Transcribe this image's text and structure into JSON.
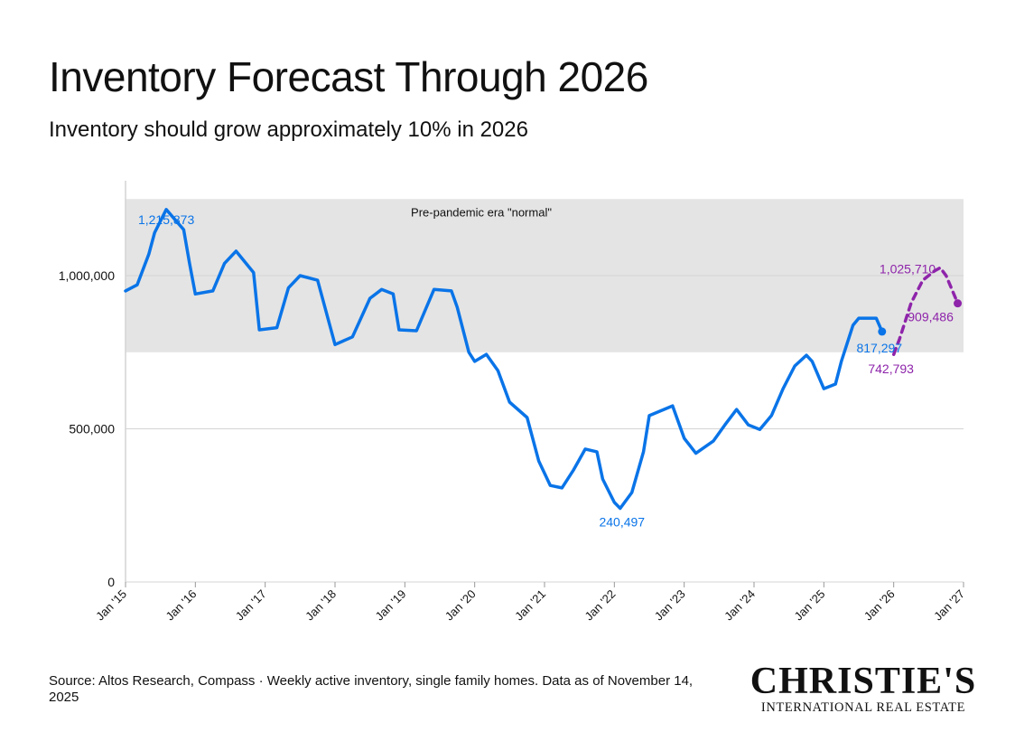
{
  "title": "Inventory Forecast Through 2026",
  "subtitle": "Inventory should grow approximately 10% in 2026",
  "source": "Source: Altos Research, Compass · Weekly active inventory, single family homes. Data as of November 14, 2025",
  "logo": {
    "name": "CHRISTIE'S",
    "tagline": "INTERNATIONAL REAL ESTATE"
  },
  "chart_data": {
    "type": "line",
    "title": "Inventory Forecast Through 2026",
    "xlabel": "",
    "ylabel": "",
    "ylim": [
      0,
      1300000
    ],
    "xlim": [
      "2015-01",
      "2027-01"
    ],
    "y_ticks": [
      {
        "value": 0,
        "label": "0"
      },
      {
        "value": 500000,
        "label": "500,000"
      },
      {
        "value": 1000000,
        "label": "1,000,000"
      }
    ],
    "x_ticks": [
      {
        "date": "2015-01",
        "label": "Jan '15"
      },
      {
        "date": "2016-01",
        "label": "Jan '16"
      },
      {
        "date": "2017-01",
        "label": "Jan '17"
      },
      {
        "date": "2018-01",
        "label": "Jan '18"
      },
      {
        "date": "2019-01",
        "label": "Jan '19"
      },
      {
        "date": "2020-01",
        "label": "Jan '20"
      },
      {
        "date": "2021-01",
        "label": "Jan '21"
      },
      {
        "date": "2022-01",
        "label": "Jan '22"
      },
      {
        "date": "2023-01",
        "label": "Jan '23"
      },
      {
        "date": "2024-01",
        "label": "Jan '24"
      },
      {
        "date": "2025-01",
        "label": "Jan '25"
      },
      {
        "date": "2026-01",
        "label": "Jan '26"
      },
      {
        "date": "2027-01",
        "label": "Jan '27"
      }
    ],
    "grid": true,
    "band": {
      "label": "Pre-pandemic era \"normal\"",
      "from": 750000,
      "to": 1250000,
      "color": "#e4e4e4"
    },
    "series": [
      {
        "style": "solid",
        "color": "#0a74e8",
        "points": [
          [
            "2015-01",
            950000
          ],
          [
            "2015-03",
            970000
          ],
          [
            "2015-05",
            1070000
          ],
          [
            "2015-06",
            1140000
          ],
          [
            "2015-08",
            1215873
          ],
          [
            "2015-11",
            1150000
          ],
          [
            "2015-12",
            1040000
          ],
          [
            "2016-01",
            940000
          ],
          [
            "2016-04",
            950000
          ],
          [
            "2016-06",
            1040000
          ],
          [
            "2016-08",
            1080000
          ],
          [
            "2016-11",
            1010000
          ],
          [
            "2016-12",
            823000
          ],
          [
            "2017-03",
            830000
          ],
          [
            "2017-05",
            960000
          ],
          [
            "2017-07",
            1000000
          ],
          [
            "2017-10",
            985000
          ],
          [
            "2018-01",
            775000
          ],
          [
            "2018-04",
            800000
          ],
          [
            "2018-07",
            926000
          ],
          [
            "2018-09",
            955000
          ],
          [
            "2018-11",
            940000
          ],
          [
            "2018-12",
            823000
          ],
          [
            "2019-03",
            820000
          ],
          [
            "2019-06",
            955000
          ],
          [
            "2019-09",
            950000
          ],
          [
            "2019-10",
            897000
          ],
          [
            "2019-12",
            750000
          ],
          [
            "2020-01",
            720000
          ],
          [
            "2020-03",
            743000
          ],
          [
            "2020-05",
            690000
          ],
          [
            "2020-07",
            587000
          ],
          [
            "2020-10",
            537000
          ],
          [
            "2020-12",
            395000
          ],
          [
            "2021-02",
            315000
          ],
          [
            "2021-04",
            307000
          ],
          [
            "2021-06",
            366000
          ],
          [
            "2021-08",
            434000
          ],
          [
            "2021-10",
            425000
          ],
          [
            "2021-11",
            336000
          ],
          [
            "2022-01",
            260000
          ],
          [
            "2022-02",
            240497
          ],
          [
            "2022-04",
            292000
          ],
          [
            "2022-06",
            425000
          ],
          [
            "2022-07",
            543000
          ],
          [
            "2022-11",
            575000
          ],
          [
            "2023-01",
            469000
          ],
          [
            "2023-03",
            420000
          ],
          [
            "2023-06",
            460000
          ],
          [
            "2023-08",
            513000
          ],
          [
            "2023-10",
            563000
          ],
          [
            "2023-12",
            513000
          ],
          [
            "2024-02",
            498000
          ],
          [
            "2024-04",
            543000
          ],
          [
            "2024-06",
            631000
          ],
          [
            "2024-08",
            705000
          ],
          [
            "2024-10",
            740000
          ],
          [
            "2024-11",
            720000
          ],
          [
            "2025-01",
            631000
          ],
          [
            "2025-03",
            646000
          ],
          [
            "2025-04",
            720000
          ],
          [
            "2025-06",
            838000
          ],
          [
            "2025-07",
            861000
          ],
          [
            "2025-10",
            861000
          ],
          [
            "2025-11",
            817297
          ]
        ]
      },
      {
        "style": "dashed",
        "color": "#8e24aa",
        "points": [
          [
            "2026-01",
            742793
          ],
          [
            "2026-02",
            793000
          ],
          [
            "2026-04",
            911000
          ],
          [
            "2026-06",
            985000
          ],
          [
            "2026-08",
            1015000
          ],
          [
            "2026-09",
            1025710
          ],
          [
            "2026-10",
            1000000
          ],
          [
            "2026-12",
            909486
          ]
        ]
      }
    ],
    "annotations": [
      {
        "text": "1,215,873",
        "date": "2015-08",
        "value": 1215873,
        "color": "#0a74e8"
      },
      {
        "text": "240,497",
        "date": "2022-02",
        "value": 240497,
        "color": "#0a74e8"
      },
      {
        "text": "817,297",
        "date": "2025-11",
        "value": 817297,
        "color": "#0a74e8"
      },
      {
        "text": "742,793",
        "date": "2026-01",
        "value": 742793,
        "color": "#8e24aa"
      },
      {
        "text": "1,025,710",
        "date": "2026-09",
        "value": 1025710,
        "color": "#8e24aa"
      },
      {
        "text": "909,486",
        "date": "2026-12",
        "value": 909486,
        "color": "#8e24aa"
      }
    ]
  }
}
